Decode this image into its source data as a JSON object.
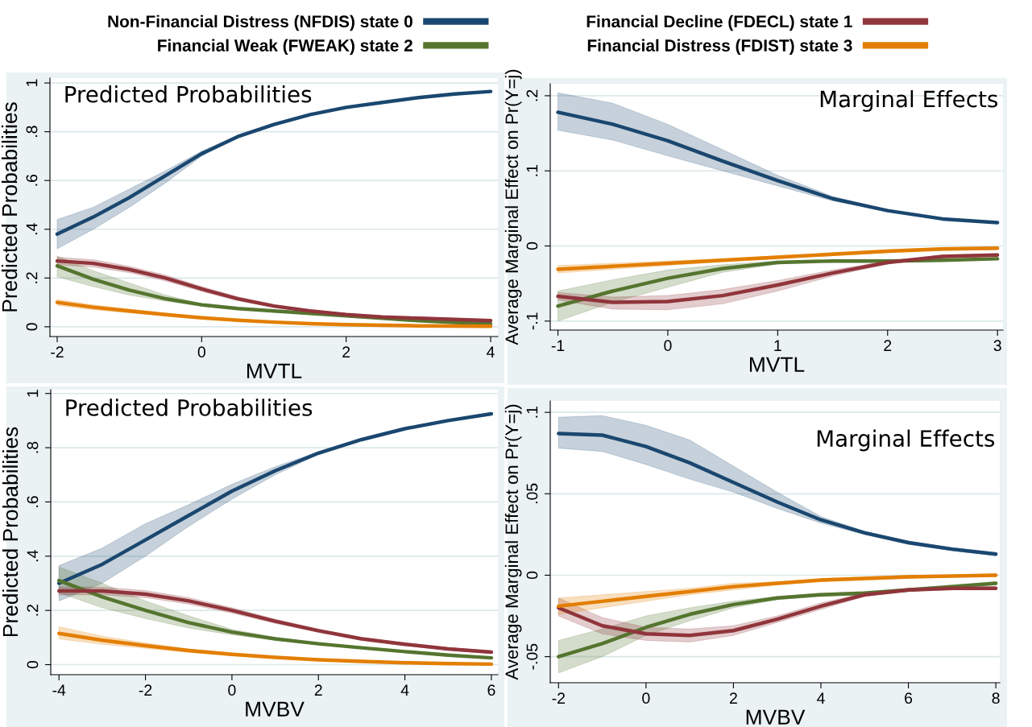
{
  "chart_data": [
    {
      "type": "line",
      "xlabel": "MVTL",
      "ylabel": "Predicted Probabilities",
      "annotations": [
        "Predicted Probabilities"
      ],
      "legend": "top",
      "grid": "y",
      "xlim": [
        -2.1,
        4.1
      ],
      "ylim": [
        -0.04,
        1.02
      ],
      "xticks": [
        -2,
        0,
        2,
        4
      ],
      "yticks": [
        0,
        {
          "value": 0.2,
          "label": ".2"
        },
        {
          "value": 0.4,
          "label": ".4"
        },
        {
          "value": 0.6,
          "label": ".6"
        },
        {
          "value": 0.8,
          "label": ".8"
        },
        1
      ],
      "x": [
        -2,
        -1.5,
        -1,
        -0.5,
        0,
        0.5,
        1,
        1.5,
        2,
        2.5,
        3,
        3.5,
        4
      ],
      "series": [
        {
          "name": "Non-Financial Distress (NFDIS) state 0",
          "color": "#1a476f",
          "values": [
            0.38,
            0.45,
            0.53,
            0.62,
            0.71,
            0.78,
            0.83,
            0.87,
            0.9,
            0.92,
            0.94,
            0.955,
            0.965
          ],
          "lower": [
            0.32,
            0.4,
            0.49,
            0.59,
            0.7,
            0.775,
            0.826,
            0.867,
            0.897,
            0.918,
            0.938,
            0.953,
            0.963
          ],
          "upper": [
            0.44,
            0.49,
            0.565,
            0.64,
            0.72,
            0.785,
            0.834,
            0.873,
            0.903,
            0.922,
            0.942,
            0.957,
            0.967
          ]
        },
        {
          "name": "Financial Weak (FWEAK) state 2",
          "color": "#55752f",
          "values": [
            0.25,
            0.195,
            0.15,
            0.115,
            0.09,
            0.075,
            0.065,
            0.055,
            0.045,
            0.035,
            0.025,
            0.018,
            0.012
          ],
          "lower": [
            0.205,
            0.165,
            0.13,
            0.105,
            0.085,
            0.071,
            0.062,
            0.052,
            0.042,
            0.032,
            0.022,
            0.015,
            0.009
          ],
          "upper": [
            0.29,
            0.23,
            0.18,
            0.13,
            0.095,
            0.079,
            0.068,
            0.058,
            0.048,
            0.038,
            0.028,
            0.021,
            0.015
          ]
        },
        {
          "name": "Financial Decline (FDECL) state 1",
          "color": "#90353b",
          "values": [
            0.27,
            0.26,
            0.235,
            0.2,
            0.155,
            0.115,
            0.085,
            0.065,
            0.05,
            0.04,
            0.035,
            0.03,
            0.025
          ],
          "lower": [
            0.255,
            0.245,
            0.222,
            0.188,
            0.145,
            0.107,
            0.079,
            0.06,
            0.045,
            0.035,
            0.03,
            0.025,
            0.02
          ],
          "upper": [
            0.285,
            0.275,
            0.248,
            0.212,
            0.165,
            0.123,
            0.091,
            0.07,
            0.055,
            0.045,
            0.04,
            0.035,
            0.03
          ]
        },
        {
          "name": "Financial Distress (FDIST) state 3",
          "color": "#e37e00",
          "values": [
            0.1,
            0.08,
            0.065,
            0.05,
            0.037,
            0.027,
            0.019,
            0.013,
            0.009,
            0.006,
            0.004,
            0.003,
            0.002
          ],
          "lower": [
            0.088,
            0.07,
            0.057,
            0.044,
            0.032,
            0.023,
            0.016,
            0.011,
            0.007,
            0.004,
            0.002,
            0.001,
            0.0
          ],
          "upper": [
            0.112,
            0.09,
            0.073,
            0.056,
            0.042,
            0.031,
            0.022,
            0.015,
            0.011,
            0.008,
            0.006,
            0.005,
            0.004
          ]
        }
      ]
    },
    {
      "type": "line",
      "xlabel": "MVTL",
      "ylabel": "Average Marginal Effect on Pr(Y=j)",
      "annotations": [
        "Marginal Effects"
      ],
      "grid": "y",
      "xlim": [
        -1.07,
        3.05
      ],
      "ylim": [
        -0.112,
        0.216
      ],
      "xticks": [
        -1,
        0,
        1,
        2,
        3
      ],
      "yticks": [
        {
          "value": -0.1,
          "label": "-.1"
        },
        0,
        {
          "value": 0.1,
          "label": ".1"
        },
        {
          "value": 0.2,
          "label": ".2"
        }
      ],
      "x": [
        -1,
        -0.5,
        0,
        0.5,
        1,
        1.5,
        2,
        2.5,
        3
      ],
      "series": [
        {
          "color": "#1a476f",
          "values": [
            0.178,
            0.162,
            0.14,
            0.113,
            0.087,
            0.063,
            0.047,
            0.036,
            0.031
          ],
          "lower": [
            0.154,
            0.141,
            0.12,
            0.1,
            0.08,
            0.06,
            0.046,
            0.035,
            0.03
          ],
          "upper": [
            0.204,
            0.19,
            0.162,
            0.128,
            0.094,
            0.066,
            0.048,
            0.037,
            0.032
          ]
        },
        {
          "color": "#55752f",
          "values": [
            -0.08,
            -0.06,
            -0.043,
            -0.03,
            -0.022,
            -0.02,
            -0.02,
            -0.019,
            -0.017
          ],
          "lower": [
            -0.1,
            -0.075,
            -0.055,
            -0.035,
            -0.024,
            -0.021,
            -0.021,
            -0.02,
            -0.018
          ],
          "upper": [
            -0.06,
            -0.045,
            -0.032,
            -0.025,
            -0.02,
            -0.019,
            -0.019,
            -0.018,
            -0.016
          ]
        },
        {
          "color": "#90353b",
          "values": [
            -0.067,
            -0.075,
            -0.074,
            -0.066,
            -0.052,
            -0.036,
            -0.022,
            -0.014,
            -0.012
          ],
          "lower": [
            -0.072,
            -0.084,
            -0.085,
            -0.077,
            -0.06,
            -0.04,
            -0.024,
            -0.016,
            -0.014
          ],
          "upper": [
            -0.062,
            -0.068,
            -0.066,
            -0.058,
            -0.046,
            -0.032,
            -0.02,
            -0.012,
            -0.01
          ]
        },
        {
          "color": "#e37e00",
          "values": [
            -0.031,
            -0.027,
            -0.023,
            -0.019,
            -0.015,
            -0.011,
            -0.007,
            -0.004,
            -0.003
          ],
          "lower": [
            -0.036,
            -0.031,
            -0.026,
            -0.021,
            -0.017,
            -0.013,
            -0.009,
            -0.006,
            -0.005
          ],
          "upper": [
            -0.026,
            -0.023,
            -0.02,
            -0.017,
            -0.013,
            -0.009,
            -0.005,
            -0.002,
            -0.001
          ]
        }
      ]
    },
    {
      "type": "line",
      "xlabel": "MVBV",
      "ylabel": "Predicted Probabilities",
      "annotations": [
        "Predicted Probabilities"
      ],
      "grid": "y",
      "xlim": [
        -4.19,
        6.15
      ],
      "ylim": [
        -0.037,
        1.014
      ],
      "xticks": [
        -4,
        -2,
        0,
        2,
        4,
        6
      ],
      "yticks": [
        0,
        {
          "value": 0.2,
          "label": ".2"
        },
        {
          "value": 0.4,
          "label": ".4"
        },
        {
          "value": 0.6,
          "label": ".6"
        },
        {
          "value": 0.8,
          "label": ".8"
        },
        1
      ],
      "x": [
        -4,
        -3,
        -2,
        -1,
        0,
        1,
        2,
        3,
        4,
        5,
        6
      ],
      "series": [
        {
          "color": "#1a476f",
          "values": [
            0.3,
            0.37,
            0.46,
            0.55,
            0.64,
            0.715,
            0.78,
            0.83,
            0.87,
            0.9,
            0.925
          ],
          "lower": [
            0.235,
            0.3,
            0.4,
            0.51,
            0.61,
            0.7,
            0.775,
            0.827,
            0.867,
            0.897,
            0.922
          ],
          "upper": [
            0.365,
            0.43,
            0.52,
            0.59,
            0.665,
            0.73,
            0.785,
            0.833,
            0.873,
            0.903,
            0.928
          ]
        },
        {
          "color": "#55752f",
          "values": [
            0.31,
            0.25,
            0.2,
            0.155,
            0.12,
            0.095,
            0.077,
            0.062,
            0.048,
            0.035,
            0.025
          ],
          "lower": [
            0.265,
            0.21,
            0.17,
            0.135,
            0.11,
            0.09,
            0.074,
            0.059,
            0.045,
            0.032,
            0.022
          ],
          "upper": [
            0.36,
            0.3,
            0.235,
            0.18,
            0.13,
            0.1,
            0.08,
            0.065,
            0.051,
            0.038,
            0.028
          ]
        },
        {
          "color": "#90353b",
          "values": [
            0.272,
            0.272,
            0.26,
            0.235,
            0.2,
            0.16,
            0.125,
            0.095,
            0.075,
            0.058,
            0.046
          ],
          "lower": [
            0.257,
            0.258,
            0.247,
            0.223,
            0.19,
            0.152,
            0.119,
            0.09,
            0.07,
            0.053,
            0.041
          ],
          "upper": [
            0.287,
            0.286,
            0.273,
            0.247,
            0.21,
            0.168,
            0.131,
            0.1,
            0.08,
            0.063,
            0.051
          ]
        },
        {
          "color": "#e37e00",
          "values": [
            0.115,
            0.09,
            0.07,
            0.052,
            0.038,
            0.027,
            0.018,
            0.012,
            0.007,
            0.004,
            0.002
          ],
          "lower": [
            0.095,
            0.075,
            0.06,
            0.045,
            0.033,
            0.023,
            0.015,
            0.009,
            0.004,
            0.001,
            0.0
          ],
          "upper": [
            0.14,
            0.105,
            0.08,
            0.058,
            0.043,
            0.031,
            0.021,
            0.015,
            0.01,
            0.007,
            0.004
          ]
        }
      ]
    },
    {
      "type": "line",
      "xlabel": "MVBV",
      "ylabel": "Average Marginal Effect on Pr(Y=j)",
      "annotations": [
        "Marginal Effects"
      ],
      "grid": "y",
      "xlim": [
        -2.19,
        8.09
      ],
      "ylim": [
        -0.066,
        0.107
      ],
      "xticks": [
        -2,
        0,
        2,
        4,
        6,
        8
      ],
      "yticks": [
        {
          "value": -0.05,
          "label": "-.05"
        },
        0,
        {
          "value": 0.05,
          "label": ".05"
        },
        {
          "value": 0.1,
          "label": ".1"
        }
      ],
      "x": [
        -2,
        -1,
        0,
        1,
        2,
        3,
        4,
        5,
        6,
        7,
        8
      ],
      "series": [
        {
          "color": "#1a476f",
          "values": [
            0.087,
            0.086,
            0.079,
            0.069,
            0.057,
            0.045,
            0.034,
            0.026,
            0.02,
            0.016,
            0.013
          ],
          "lower": [
            0.078,
            0.076,
            0.068,
            0.059,
            0.051,
            0.041,
            0.032,
            0.025,
            0.019,
            0.015,
            0.012
          ],
          "upper": [
            0.097,
            0.098,
            0.092,
            0.083,
            0.067,
            0.051,
            0.036,
            0.027,
            0.021,
            0.017,
            0.014
          ]
        },
        {
          "color": "#55752f",
          "values": [
            -0.05,
            -0.042,
            -0.032,
            -0.024,
            -0.018,
            -0.014,
            -0.012,
            -0.011,
            -0.009,
            -0.007,
            -0.005
          ],
          "lower": [
            -0.06,
            -0.05,
            -0.037,
            -0.028,
            -0.02,
            -0.015,
            -0.013,
            -0.012,
            -0.01,
            -0.008,
            -0.006
          ],
          "upper": [
            -0.04,
            -0.033,
            -0.025,
            -0.02,
            -0.016,
            -0.013,
            -0.011,
            -0.01,
            -0.008,
            -0.006,
            -0.004
          ]
        },
        {
          "color": "#90353b",
          "values": [
            -0.02,
            -0.031,
            -0.036,
            -0.037,
            -0.034,
            -0.027,
            -0.019,
            -0.012,
            -0.009,
            -0.008,
            -0.008
          ],
          "lower": [
            -0.025,
            -0.036,
            -0.04,
            -0.041,
            -0.037,
            -0.029,
            -0.021,
            -0.013,
            -0.01,
            -0.009,
            -0.009
          ],
          "upper": [
            -0.014,
            -0.026,
            -0.032,
            -0.033,
            -0.031,
            -0.025,
            -0.017,
            -0.011,
            -0.008,
            -0.007,
            -0.007
          ]
        },
        {
          "color": "#e37e00",
          "values": [
            -0.019,
            -0.016,
            -0.013,
            -0.01,
            -0.007,
            -0.005,
            -0.003,
            -0.002,
            -0.001,
            -0.0005,
            0
          ],
          "lower": [
            -0.024,
            -0.02,
            -0.016,
            -0.012,
            -0.009,
            -0.006,
            -0.004,
            -0.003,
            -0.002,
            -0.001,
            -0.001
          ],
          "upper": [
            -0.014,
            -0.012,
            -0.01,
            -0.008,
            -0.005,
            -0.004,
            -0.002,
            -0.001,
            0,
            0,
            0.001
          ]
        }
      ]
    }
  ]
}
